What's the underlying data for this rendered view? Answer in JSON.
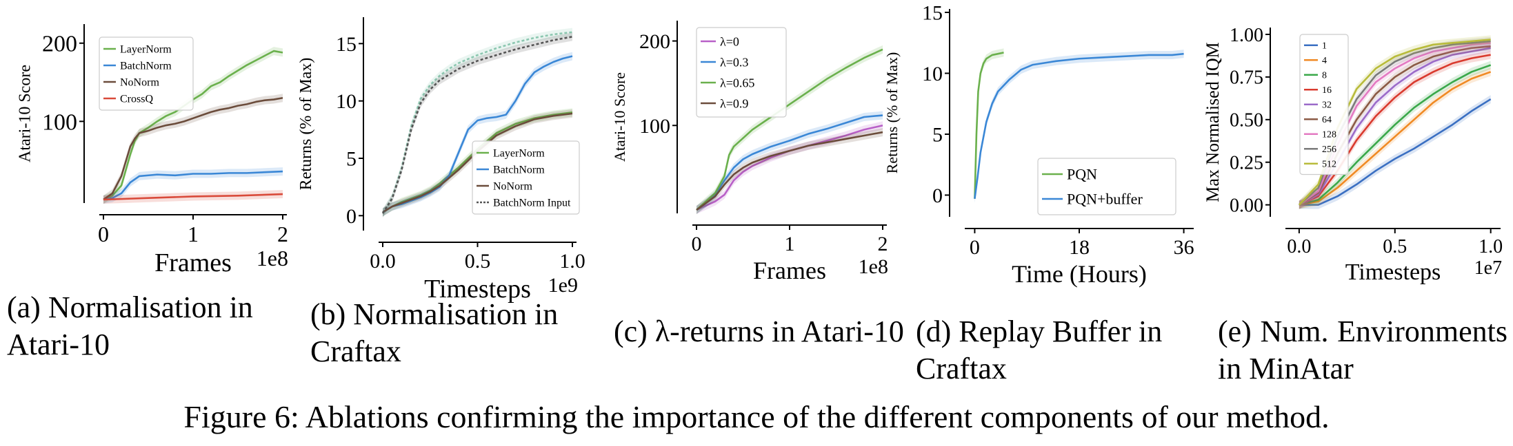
{
  "figure_caption": "Figure 6: Ablations confirming the importance of the different components of our method.",
  "subcaptions": {
    "a": "(a) Normalisation in Atari-10",
    "b": "(b) Normalisation in Craftax",
    "c": "(c) λ-returns in Atari-10",
    "d": "(d) Replay Buffer in Craftax",
    "e": "(e) Num. Environments in MinAtar"
  },
  "chart_data": [
    {
      "id": "a",
      "type": "line",
      "ylabel": "Atari-10 Score",
      "xlabel": "Frames",
      "x_multiplier": "1e8",
      "xlim": [
        0,
        2
      ],
      "ylim": [
        0,
        220
      ],
      "xticks": [
        0,
        1,
        2
      ],
      "xtick_labels": [
        "0",
        "1",
        "2"
      ],
      "yticks": [
        100,
        200
      ],
      "ytick_labels": [
        "100",
        "200"
      ],
      "legend_position": "upper-left",
      "series": [
        {
          "name": "LayerNorm",
          "color": "#6ab04c",
          "x": [
            0,
            0.1,
            0.2,
            0.3,
            0.35,
            0.4,
            0.5,
            0.6,
            0.7,
            0.8,
            0.9,
            1.0,
            1.1,
            1.2,
            1.3,
            1.4,
            1.5,
            1.6,
            1.7,
            1.8,
            1.9,
            2.0
          ],
          "y": [
            0,
            5,
            18,
            58,
            75,
            85,
            92,
            100,
            107,
            112,
            120,
            128,
            135,
            145,
            150,
            158,
            165,
            172,
            178,
            184,
            190,
            188
          ]
        },
        {
          "name": "BatchNorm",
          "color": "#3a87d6",
          "x": [
            0,
            0.1,
            0.2,
            0.3,
            0.4,
            0.6,
            0.8,
            1.0,
            1.2,
            1.4,
            1.6,
            1.8,
            2.0
          ],
          "y": [
            0,
            2,
            8,
            22,
            30,
            32,
            31,
            33,
            33,
            34,
            34,
            35,
            36
          ]
        },
        {
          "name": "NoNorm",
          "color": "#6b4c3b",
          "x": [
            0,
            0.1,
            0.2,
            0.3,
            0.35,
            0.4,
            0.5,
            0.6,
            0.7,
            0.8,
            0.9,
            1.0,
            1.1,
            1.2,
            1.3,
            1.4,
            1.5,
            1.6,
            1.7,
            1.8,
            1.9,
            2.0
          ],
          "y": [
            0,
            8,
            30,
            68,
            78,
            85,
            88,
            92,
            95,
            97,
            100,
            104,
            108,
            112,
            115,
            117,
            120,
            122,
            125,
            127,
            128,
            130
          ]
        },
        {
          "name": "CrossQ",
          "color": "#d94a3a",
          "x": [
            0,
            0.5,
            1.0,
            1.5,
            2.0
          ],
          "y": [
            0,
            2,
            4,
            5,
            7
          ]
        }
      ]
    },
    {
      "id": "b",
      "type": "line",
      "ylabel": "Returns (% of Max)",
      "xlabel": "Timesteps",
      "x_multiplier": "1e9",
      "xlim": [
        0,
        1.0
      ],
      "ylim": [
        -1,
        17
      ],
      "xticks": [
        0.0,
        0.5,
        1.0
      ],
      "xtick_labels": [
        "0.0",
        "0.5",
        "1.0"
      ],
      "yticks": [
        0,
        5,
        10,
        15
      ],
      "ytick_labels": [
        "0",
        "5",
        "10",
        "15"
      ],
      "legend_position": "lower-right",
      "series": [
        {
          "name": "LayerNorm",
          "color": "#6ab04c",
          "x": [
            0,
            0.05,
            0.1,
            0.15,
            0.2,
            0.25,
            0.3,
            0.35,
            0.4,
            0.45,
            0.5,
            0.55,
            0.6,
            0.7,
            0.8,
            0.9,
            1.0
          ],
          "y": [
            0.3,
            0.8,
            1.2,
            1.5,
            1.8,
            2.2,
            2.8,
            3.5,
            4.2,
            5.0,
            5.8,
            6.5,
            7.2,
            8.0,
            8.5,
            8.8,
            9.0
          ]
        },
        {
          "name": "BatchNorm",
          "color": "#3a87d6",
          "x": [
            0,
            0.05,
            0.1,
            0.15,
            0.2,
            0.25,
            0.3,
            0.35,
            0.4,
            0.45,
            0.5,
            0.55,
            0.6,
            0.65,
            0.7,
            0.75,
            0.8,
            0.85,
            0.9,
            0.95,
            1.0
          ],
          "y": [
            0.3,
            0.8,
            1.0,
            1.3,
            1.6,
            2.0,
            2.5,
            3.5,
            5.5,
            7.5,
            8.3,
            8.5,
            8.6,
            8.8,
            10.0,
            11.5,
            12.5,
            13.0,
            13.4,
            13.7,
            13.9
          ]
        },
        {
          "name": "NoNorm",
          "color": "#6b4c3b",
          "x": [
            0,
            0.05,
            0.1,
            0.15,
            0.2,
            0.25,
            0.3,
            0.35,
            0.4,
            0.45,
            0.5,
            0.55,
            0.6,
            0.7,
            0.8,
            0.9,
            1.0
          ],
          "y": [
            0.3,
            0.8,
            1.1,
            1.4,
            1.7,
            2.1,
            2.6,
            3.3,
            4.0,
            4.8,
            5.6,
            6.3,
            7.0,
            7.8,
            8.4,
            8.7,
            8.9
          ]
        },
        {
          "name": "BatchNorm Input",
          "color": "#555555",
          "dashed": true,
          "x": [
            0,
            0.05,
            0.1,
            0.15,
            0.2,
            0.25,
            0.3,
            0.35,
            0.4,
            0.5,
            0.6,
            0.7,
            0.8,
            0.9,
            1.0
          ],
          "y": [
            0.2,
            1.5,
            4.0,
            7.5,
            9.8,
            11.0,
            11.8,
            12.3,
            12.8,
            13.5,
            14.0,
            14.5,
            14.9,
            15.3,
            15.6
          ]
        }
      ],
      "unlabeled_series": [
        {
          "color": "#8cc7b0",
          "dashed": true,
          "x": [
            0,
            0.05,
            0.1,
            0.15,
            0.2,
            0.25,
            0.3,
            0.35,
            0.4,
            0.5,
            0.6,
            0.7,
            0.8,
            0.9,
            1.0
          ],
          "y": [
            0.2,
            1.6,
            4.2,
            7.8,
            10.2,
            11.4,
            12.2,
            12.8,
            13.3,
            14.0,
            14.6,
            15.1,
            15.5,
            15.8,
            16.0
          ]
        }
      ]
    },
    {
      "id": "c",
      "type": "line",
      "ylabel": "Atari-10 Score",
      "xlabel": "Frames",
      "x_multiplier": "1e8",
      "xlim": [
        0,
        2
      ],
      "ylim": [
        0,
        220
      ],
      "xticks": [
        0,
        1,
        2
      ],
      "xtick_labels": [
        "0",
        "1",
        "2"
      ],
      "yticks": [
        100,
        200
      ],
      "ytick_labels": [
        "100",
        "200"
      ],
      "legend_position": "upper-left",
      "series": [
        {
          "name": "λ=0",
          "color": "#b85fc7",
          "x": [
            0,
            0.1,
            0.2,
            0.3,
            0.4,
            0.5,
            0.6,
            0.8,
            1.0,
            1.2,
            1.4,
            1.6,
            1.8,
            2.0
          ],
          "y": [
            0,
            5,
            10,
            18,
            35,
            45,
            52,
            62,
            70,
            76,
            82,
            88,
            95,
            100
          ]
        },
        {
          "name": "λ=0.3",
          "color": "#3a87d6",
          "x": [
            0,
            0.1,
            0.2,
            0.3,
            0.4,
            0.5,
            0.6,
            0.8,
            1.0,
            1.2,
            1.4,
            1.6,
            1.8,
            2.0
          ],
          "y": [
            0,
            8,
            18,
            35,
            50,
            60,
            66,
            75,
            82,
            90,
            96,
            103,
            110,
            112
          ]
        },
        {
          "name": "λ=0.65",
          "color": "#6ab04c",
          "x": [
            0,
            0.1,
            0.2,
            0.3,
            0.35,
            0.4,
            0.5,
            0.6,
            0.8,
            1.0,
            1.2,
            1.4,
            1.6,
            1.8,
            2.0
          ],
          "y": [
            0,
            10,
            20,
            40,
            65,
            75,
            85,
            95,
            110,
            125,
            140,
            155,
            168,
            180,
            190
          ]
        },
        {
          "name": "λ=0.9",
          "color": "#6b4c3b",
          "x": [
            0,
            0.1,
            0.2,
            0.3,
            0.4,
            0.5,
            0.6,
            0.8,
            1.0,
            1.2,
            1.4,
            1.6,
            1.8,
            2.0
          ],
          "y": [
            0,
            8,
            16,
            30,
            42,
            50,
            56,
            64,
            70,
            76,
            80,
            84,
            88,
            92
          ]
        }
      ]
    },
    {
      "id": "d",
      "type": "line",
      "ylabel": "Returns (% of Max)",
      "xlabel": "Time (Hours)",
      "xlim": [
        -1,
        37
      ],
      "ylim": [
        -1.5,
        15
      ],
      "xticks": [
        0,
        18,
        36
      ],
      "xtick_labels": [
        "0",
        "18",
        "36"
      ],
      "yticks": [
        0,
        5,
        10,
        15
      ],
      "ytick_labels": [
        "0",
        "5",
        "10",
        "15"
      ],
      "legend_position": "lower-right",
      "series": [
        {
          "name": "PQN",
          "color": "#6ab04c",
          "x": [
            0,
            0.3,
            0.6,
            1.0,
            1.5,
            2.0,
            3.0,
            4.0,
            5.0
          ],
          "y": [
            -0.3,
            5.0,
            8.5,
            10.0,
            10.8,
            11.2,
            11.5,
            11.6,
            11.7
          ]
        },
        {
          "name": "PQN+buffer",
          "color": "#3a87d6",
          "x": [
            0,
            0.5,
            1.0,
            2.0,
            3.0,
            4.0,
            6.0,
            8.0,
            10.0,
            14.0,
            18.0,
            22.0,
            26.0,
            30.0,
            34.0,
            36.0
          ],
          "y": [
            -0.3,
            1.5,
            3.5,
            6.0,
            7.5,
            8.5,
            9.5,
            10.3,
            10.7,
            11.0,
            11.2,
            11.3,
            11.4,
            11.5,
            11.5,
            11.6
          ]
        }
      ]
    },
    {
      "id": "e",
      "type": "line",
      "ylabel": "Max Normalised IQM",
      "xlabel": "Timesteps",
      "x_multiplier": "1e7",
      "xlim": [
        -0.05,
        1.03
      ],
      "ylim": [
        -0.05,
        1.02
      ],
      "xticks": [
        0.0,
        0.5,
        1.0
      ],
      "xtick_labels": [
        "0.0",
        "0.5",
        "1.0"
      ],
      "yticks": [
        0.0,
        0.25,
        0.5,
        0.75,
        1.0
      ],
      "ytick_labels": [
        "0.00",
        "0.25",
        "0.50",
        "0.75",
        "1.00"
      ],
      "legend_position": "upper-left",
      "series": [
        {
          "name": "1",
          "color": "#3a6fc2",
          "x": [
            0,
            0.1,
            0.2,
            0.3,
            0.4,
            0.5,
            0.6,
            0.7,
            0.8,
            0.9,
            1.0
          ],
          "y": [
            0,
            0.0,
            0.05,
            0.12,
            0.2,
            0.27,
            0.33,
            0.4,
            0.47,
            0.55,
            0.62
          ]
        },
        {
          "name": "4",
          "color": "#f08a24",
          "x": [
            0,
            0.1,
            0.2,
            0.3,
            0.4,
            0.5,
            0.6,
            0.7,
            0.8,
            0.9,
            1.0
          ],
          "y": [
            0,
            0.02,
            0.1,
            0.2,
            0.3,
            0.4,
            0.5,
            0.6,
            0.68,
            0.74,
            0.78
          ]
        },
        {
          "name": "8",
          "color": "#3aa84a",
          "x": [
            0,
            0.1,
            0.2,
            0.3,
            0.4,
            0.5,
            0.6,
            0.7,
            0.8,
            0.9,
            1.0
          ],
          "y": [
            0,
            0.03,
            0.13,
            0.25,
            0.36,
            0.47,
            0.57,
            0.65,
            0.72,
            0.78,
            0.82
          ]
        },
        {
          "name": "16",
          "color": "#d93a2e",
          "x": [
            0,
            0.1,
            0.2,
            0.3,
            0.4,
            0.5,
            0.6,
            0.7,
            0.8,
            0.9,
            1.0
          ],
          "y": [
            0,
            0.05,
            0.2,
            0.38,
            0.52,
            0.63,
            0.72,
            0.78,
            0.83,
            0.86,
            0.88
          ]
        },
        {
          "name": "32",
          "color": "#9b6bc9",
          "x": [
            0,
            0.1,
            0.2,
            0.3,
            0.4,
            0.5,
            0.6,
            0.7,
            0.8,
            0.9,
            1.0
          ],
          "y": [
            0,
            0.06,
            0.25,
            0.45,
            0.6,
            0.7,
            0.78,
            0.84,
            0.88,
            0.9,
            0.92
          ]
        },
        {
          "name": "64",
          "color": "#8b5a45",
          "x": [
            0,
            0.1,
            0.2,
            0.3,
            0.4,
            0.5,
            0.6,
            0.7,
            0.8,
            0.9,
            1.0
          ],
          "y": [
            0,
            0.07,
            0.3,
            0.5,
            0.65,
            0.75,
            0.82,
            0.87,
            0.9,
            0.92,
            0.93
          ]
        },
        {
          "name": "128",
          "color": "#e37ac2",
          "x": [
            0,
            0.1,
            0.2,
            0.3,
            0.4,
            0.5,
            0.6,
            0.7,
            0.8,
            0.9,
            1.0
          ],
          "y": [
            0,
            0.08,
            0.35,
            0.58,
            0.72,
            0.8,
            0.86,
            0.9,
            0.92,
            0.94,
            0.95
          ]
        },
        {
          "name": "256",
          "color": "#7a7a7a",
          "x": [
            0,
            0.1,
            0.2,
            0.3,
            0.4,
            0.5,
            0.6,
            0.7,
            0.8,
            0.9,
            1.0
          ],
          "y": [
            0,
            0.1,
            0.4,
            0.62,
            0.76,
            0.84,
            0.89,
            0.92,
            0.94,
            0.95,
            0.96
          ]
        },
        {
          "name": "512",
          "color": "#b8bb3a",
          "x": [
            0,
            0.1,
            0.2,
            0.3,
            0.4,
            0.5,
            0.6,
            0.7,
            0.8,
            0.9,
            1.0
          ],
          "y": [
            0,
            0.12,
            0.45,
            0.68,
            0.8,
            0.87,
            0.91,
            0.94,
            0.95,
            0.96,
            0.97
          ]
        }
      ]
    }
  ]
}
